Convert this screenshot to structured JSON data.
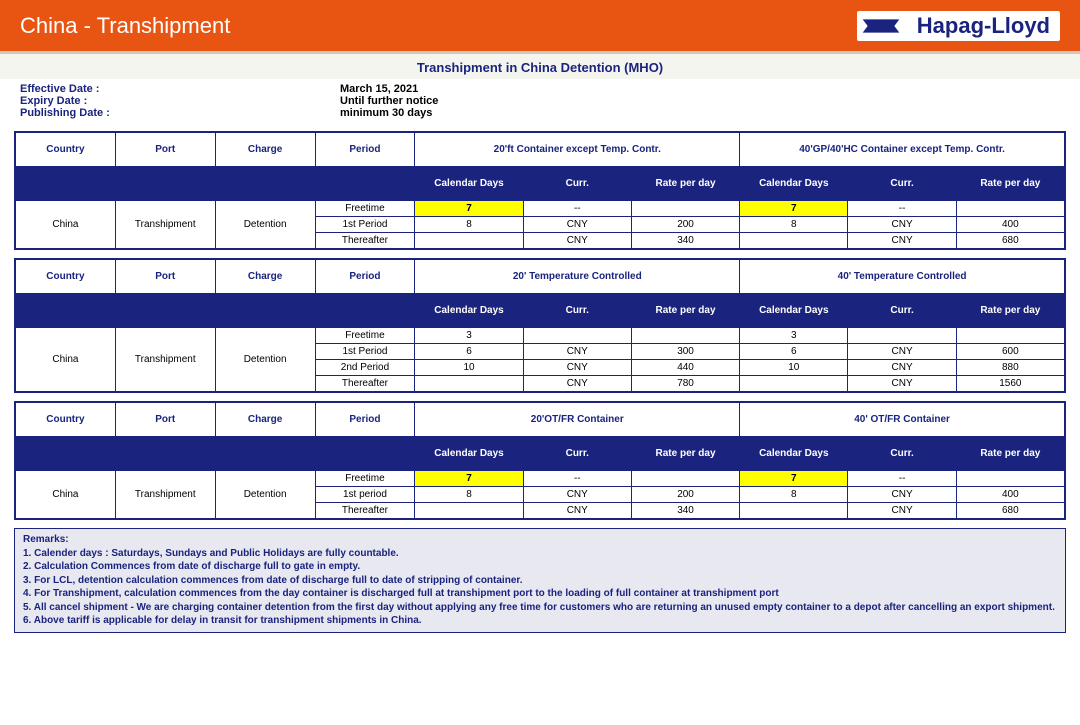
{
  "banner": {
    "title": "China - Transhipment",
    "logo_text": "Hapag-Lloyd"
  },
  "doc_title": "Transhipment in China Detention (MHO)",
  "meta": {
    "effective_label": "Effective Date :",
    "effective_value": "March 15, 2021",
    "expiry_label": "Expiry Date :",
    "expiry_value": "Until further notice",
    "publishing_label": "Publishing Date :",
    "publishing_value": "minimum 30 days"
  },
  "headers": {
    "country": "Country",
    "port": "Port",
    "charge": "Charge",
    "period": "Period",
    "cal_days": "Calendar Days",
    "curr": "Curr.",
    "rate": "Rate per day"
  },
  "common": {
    "country": "China",
    "port": "Transhipment",
    "charge": "Detention",
    "freetime": "Freetime",
    "p1": "1st Period",
    "p2": "2nd Period",
    "thereafter": "Thereafter",
    "dash": "--"
  },
  "sections": [
    {
      "group20": "20'ft Container except Temp. Contr.",
      "group40": "40'GP/40'HC Container except Temp. Contr.",
      "rows": [
        {
          "period": "Freetime",
          "d20": "7",
          "c20": "--",
          "r20": "",
          "d40": "7",
          "c40": "--",
          "r40": "",
          "hl20": true,
          "hl40": true
        },
        {
          "period": "1st Period",
          "d20": "8",
          "c20": "CNY",
          "r20": "200",
          "d40": "8",
          "c40": "CNY",
          "r40": "400"
        },
        {
          "period": "Thereafter",
          "d20": "",
          "c20": "CNY",
          "r20": "340",
          "d40": "",
          "c40": "CNY",
          "r40": "680"
        }
      ]
    },
    {
      "group20": "20' Temperature Controlled",
      "group40": "40' Temperature Controlled",
      "rows": [
        {
          "period": "Freetime",
          "d20": "3",
          "c20": "",
          "r20": "",
          "d40": "3",
          "c40": "",
          "r40": ""
        },
        {
          "period": "1st Period",
          "d20": "6",
          "c20": "CNY",
          "r20": "300",
          "d40": "6",
          "c40": "CNY",
          "r40": "600"
        },
        {
          "period": "2nd Period",
          "d20": "10",
          "c20": "CNY",
          "r20": "440",
          "d40": "10",
          "c40": "CNY",
          "r40": "880"
        },
        {
          "period": "Thereafter",
          "d20": "",
          "c20": "CNY",
          "r20": "780",
          "d40": "",
          "c40": "CNY",
          "r40": "1560"
        }
      ]
    },
    {
      "group20": "20'OT/FR Container",
      "group40": "40' OT/FR Container",
      "rows": [
        {
          "period": "Freetime",
          "d20": "7",
          "c20": "--",
          "r20": "",
          "d40": "7",
          "c40": "--",
          "r40": "",
          "hl20": true,
          "hl40": true
        },
        {
          "period": "1st period",
          "d20": "8",
          "c20": "CNY",
          "r20": "200",
          "d40": "8",
          "c40": "CNY",
          "r40": "400"
        },
        {
          "period": "Thereafter",
          "d20": "",
          "c20": "CNY",
          "r20": "340",
          "d40": "",
          "c40": "CNY",
          "r40": "680"
        }
      ]
    }
  ],
  "remarks_title": "Remarks:",
  "remarks": [
    "1. Calender days : Saturdays, Sundays and Public Holidays are fully countable.",
    "2. Calculation Commences from date of discharge full to gate in empty.",
    "3. For LCL, detention calculation commences from date of discharge full to date of stripping of container.",
    "4. For Transhipment, calculation commences from the day container is discharged full at transhipment port to the loading of full container at transhipment port",
    "5. All cancel shipment - We are charging container detention from the first day without applying any free time for customers who are returning an unused empty container to a depot after cancelling an export shipment.",
    "6. Above tariff is applicable for delay in transit for transhipment shipments in China."
  ],
  "style": {
    "banner_bg": "#e85412",
    "navy": "#1a237e",
    "yellow": "#ffff00",
    "font_family": "Arial",
    "body_fontsize": 10
  }
}
